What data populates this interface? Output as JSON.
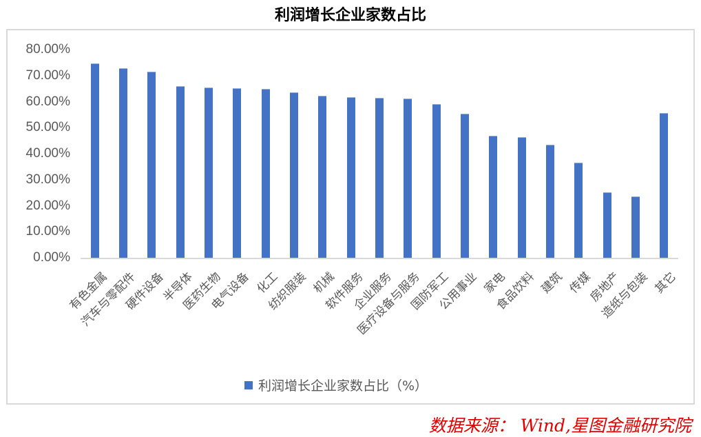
{
  "title": "利润增长企业家数占比",
  "source": "数据来源： Wind,星图金融研究院",
  "legend": {
    "label": "利润增长企业家数占比（%）",
    "color": "#4472c4"
  },
  "y_ticks": [
    "80.00%",
    "70.00%",
    "60.00%",
    "50.00%",
    "40.00%",
    "30.00%",
    "20.00%",
    "10.00%",
    "0.00%"
  ],
  "chart_data": {
    "type": "bar",
    "title": "利润增长企业家数占比",
    "xlabel": "",
    "ylabel": "",
    "ylim": [
      0,
      80
    ],
    "y_tick_format": "percent_2dp",
    "grid": false,
    "legend_position": "bottom",
    "categories": [
      "有色金属",
      "汽车与零配件",
      "硬件设备",
      "半导体",
      "医药生物",
      "电气设备",
      "化工",
      "纺织服装",
      "机械",
      "软件服务",
      "企业服务",
      "医疗设备与服务",
      "国防军工",
      "公用事业",
      "家电",
      "食品饮料",
      "建筑",
      "传媒",
      "房地产",
      "造纸与包装",
      "其它"
    ],
    "series": [
      {
        "name": "利润增长企业家数占比（%）",
        "color": "#4472c4",
        "values": [
          74.7,
          72.8,
          71.5,
          65.9,
          65.3,
          65.1,
          64.8,
          63.5,
          62.3,
          61.8,
          61.4,
          61.1,
          59.0,
          55.3,
          47.0,
          46.4,
          43.5,
          36.6,
          25.2,
          23.7,
          55.7
        ]
      }
    ]
  }
}
